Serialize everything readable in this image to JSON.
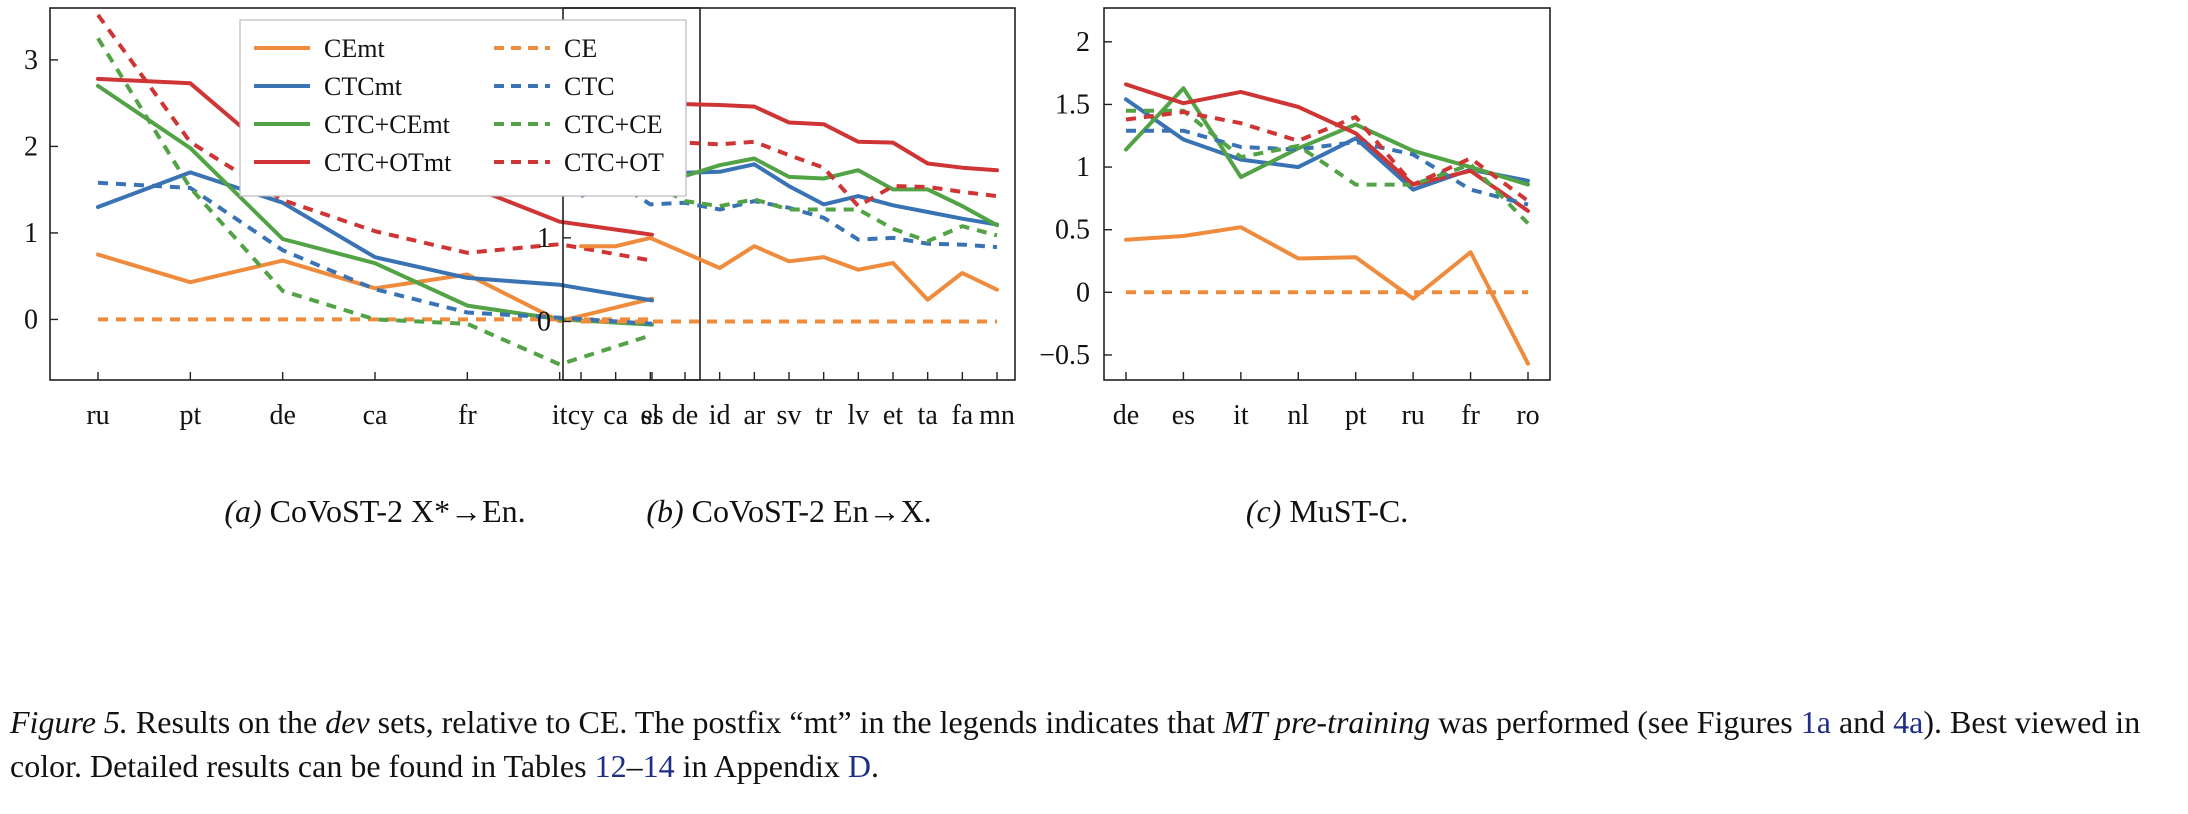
{
  "colors": {
    "CE": "#ef8b3d",
    "CTC": "#3a73b3",
    "CTC+CE": "#52a345",
    "CTC+OT": "#cf3535"
  },
  "legend": {
    "entries": [
      {
        "label": "CEmt",
        "key": "CE",
        "dash": false
      },
      {
        "label": "CTCmt",
        "key": "CTC",
        "dash": false
      },
      {
        "label": "CTC+CEmt",
        "key": "CTC+CE",
        "dash": false
      },
      {
        "label": "CTC+OTmt",
        "key": "CTC+OT",
        "dash": false
      },
      {
        "label": "CE",
        "key": "CE",
        "dash": true
      },
      {
        "label": "CTC",
        "key": "CTC",
        "dash": true
      },
      {
        "label": "CTC+CE",
        "key": "CTC+CE",
        "dash": true
      },
      {
        "label": "CTC+OT",
        "key": "CTC+OT",
        "dash": true
      }
    ]
  },
  "chart_data": [
    {
      "type": "line",
      "caption_label": "(a)",
      "caption_text": "CoVoST-2 X*→En.",
      "categories": [
        "ru",
        "pt",
        "de",
        "ca",
        "fr",
        "it",
        "es"
      ],
      "ylim": [
        -0.7,
        3.6
      ],
      "yticks": [
        0,
        1,
        2,
        3
      ],
      "legend": "top-right",
      "series": [
        {
          "name": "CEmt",
          "key": "CE",
          "dash": false,
          "values": [
            0.75,
            0.43,
            0.68,
            0.36,
            0.52,
            -0.02,
            0.24
          ]
        },
        {
          "name": "CTCmt",
          "key": "CTC",
          "dash": false,
          "values": [
            1.3,
            1.7,
            1.35,
            0.72,
            0.48,
            0.4,
            0.22
          ]
        },
        {
          "name": "CTC+CEmt",
          "key": "CTC+CE",
          "dash": false,
          "values": [
            2.7,
            1.98,
            0.93,
            0.65,
            0.16,
            0.0,
            -0.06
          ]
        },
        {
          "name": "CTC+OTmt",
          "key": "CTC+OT",
          "dash": false,
          "values": [
            2.78,
            2.73,
            1.82,
            1.66,
            1.55,
            1.13,
            0.98
          ]
        },
        {
          "name": "CE",
          "key": "CE",
          "dash": true,
          "values": [
            0,
            0,
            0,
            0,
            0,
            0,
            0
          ]
        },
        {
          "name": "CTC",
          "key": "CTC",
          "dash": true,
          "values": [
            1.58,
            1.52,
            0.8,
            0.35,
            0.08,
            0.02,
            -0.05
          ]
        },
        {
          "name": "CTC+CE",
          "key": "CTC+CE",
          "dash": true,
          "values": [
            3.25,
            1.52,
            0.33,
            0.0,
            -0.05,
            -0.52,
            -0.18
          ]
        },
        {
          "name": "CTC+OT",
          "key": "CTC+OT",
          "dash": true,
          "values": [
            3.52,
            2.05,
            1.38,
            1.02,
            0.77,
            0.87,
            0.68
          ]
        }
      ]
    },
    {
      "type": "line",
      "caption_label": "(b)",
      "caption_text": "CoVoST-2 En→X.",
      "categories": [
        "cy",
        "ca",
        "sl",
        "de",
        "id",
        "ar",
        "sv",
        "tr",
        "lv",
        "et",
        "ta",
        "fa",
        "mn"
      ],
      "ylim": [
        -0.7,
        3.75
      ],
      "yticks": [
        0,
        1,
        2,
        3
      ],
      "series": [
        {
          "name": "CEmt",
          "key": "CE",
          "dash": false,
          "values": [
            0.9,
            0.9,
            1.0,
            0.82,
            0.64,
            0.9,
            0.72,
            0.77,
            0.62,
            0.7,
            0.26,
            0.58,
            0.38
          ]
        },
        {
          "name": "CTCmt",
          "key": "CTC",
          "dash": false,
          "values": [
            1.88,
            1.97,
            1.77,
            1.78,
            1.79,
            1.88,
            1.62,
            1.4,
            1.5,
            1.39,
            1.31,
            1.23,
            1.16
          ]
        },
        {
          "name": "CTC+CEmt",
          "key": "CTC+CE",
          "dash": false,
          "values": [
            2.15,
            2.08,
            2.12,
            1.74,
            1.87,
            1.95,
            1.73,
            1.71,
            1.81,
            1.58,
            1.58,
            1.38,
            1.15
          ]
        },
        {
          "name": "CTC+OTmt",
          "key": "CTC+OT",
          "dash": false,
          "values": [
            3.0,
            2.98,
            2.6,
            2.6,
            2.59,
            2.57,
            2.38,
            2.36,
            2.15,
            2.14,
            1.89,
            1.84,
            1.81
          ]
        },
        {
          "name": "CE",
          "key": "CE",
          "dash": true,
          "values": [
            0,
            0,
            0,
            0,
            0,
            0,
            0,
            0,
            0,
            0,
            0,
            0,
            0
          ]
        },
        {
          "name": "CTC",
          "key": "CTC",
          "dash": true,
          "values": [
            1.5,
            1.67,
            1.4,
            1.42,
            1.34,
            1.44,
            1.36,
            1.24,
            0.98,
            1.0,
            0.93,
            0.92,
            0.89
          ]
        },
        {
          "name": "CTC+CE",
          "key": "CTC+CE",
          "dash": true,
          "values": [
            1.65,
            1.62,
            1.66,
            1.44,
            1.38,
            1.46,
            1.34,
            1.34,
            1.34,
            1.11,
            0.96,
            1.14,
            1.03
          ]
        },
        {
          "name": "CTC+OT",
          "key": "CTC+OT",
          "dash": true,
          "values": [
            2.58,
            2.3,
            2.0,
            2.14,
            2.12,
            2.15,
            1.99,
            1.84,
            1.38,
            1.62,
            1.61,
            1.55,
            1.5
          ]
        }
      ]
    },
    {
      "type": "line",
      "caption_label": "(c)",
      "caption_text": "MuST-C.",
      "categories": [
        "de",
        "es",
        "it",
        "nl",
        "pt",
        "ru",
        "fr",
        "ro"
      ],
      "ylim": [
        -0.7,
        2.27
      ],
      "yticks": [
        -0.5,
        0,
        0.5,
        1,
        1.5,
        2
      ],
      "ytick_labels": [
        "−0.5",
        "0",
        "0.5",
        "1",
        "1.5",
        "2"
      ],
      "series": [
        {
          "name": "CEmt",
          "key": "CE",
          "dash": false,
          "values": [
            0.42,
            0.45,
            0.52,
            0.27,
            0.28,
            -0.05,
            0.32,
            -0.57
          ]
        },
        {
          "name": "CTCmt",
          "key": "CTC",
          "dash": false,
          "values": [
            1.54,
            1.22,
            1.06,
            1.0,
            1.23,
            0.82,
            0.98,
            0.89
          ]
        },
        {
          "name": "CTC+CEmt",
          "key": "CTC+CE",
          "dash": false,
          "values": [
            1.14,
            1.63,
            0.92,
            1.15,
            1.34,
            1.13,
            1.0,
            0.86
          ]
        },
        {
          "name": "CTC+OTmt",
          "key": "CTC+OT",
          "dash": false,
          "values": [
            1.66,
            1.51,
            1.6,
            1.48,
            1.27,
            0.86,
            0.97,
            0.65
          ]
        },
        {
          "name": "CE",
          "key": "CE",
          "dash": true,
          "values": [
            0,
            0,
            0,
            0,
            0,
            0,
            0,
            0
          ]
        },
        {
          "name": "CTC",
          "key": "CTC",
          "dash": true,
          "values": [
            1.29,
            1.29,
            1.16,
            1.14,
            1.2,
            1.1,
            0.82,
            0.7
          ]
        },
        {
          "name": "CTC+CE",
          "key": "CTC+CE",
          "dash": true,
          "values": [
            1.45,
            1.45,
            1.08,
            1.17,
            0.86,
            0.86,
            1.02,
            0.55
          ]
        },
        {
          "name": "CTC+OT",
          "key": "CTC+OT",
          "dash": true,
          "values": [
            1.38,
            1.44,
            1.35,
            1.21,
            1.4,
            0.86,
            1.07,
            0.73
          ]
        }
      ]
    }
  ],
  "caption": {
    "label": "Figure 5.",
    "t1": " Results on the ",
    "dev": "dev",
    "t2": " sets, relative to CE. The postfix “mt” in the legends indicates that ",
    "mt": "MT pre-training",
    "t3": " was performed (see Figures ",
    "ref1": "1a",
    "t4": " and ",
    "ref2": "4a",
    "t5": "). Best viewed in color. Detailed results can be found in Tables ",
    "ref3": "12",
    "dash": "–",
    "ref4": "14",
    "t6": " in Appendix ",
    "ref5": "D",
    "t7": "."
  }
}
